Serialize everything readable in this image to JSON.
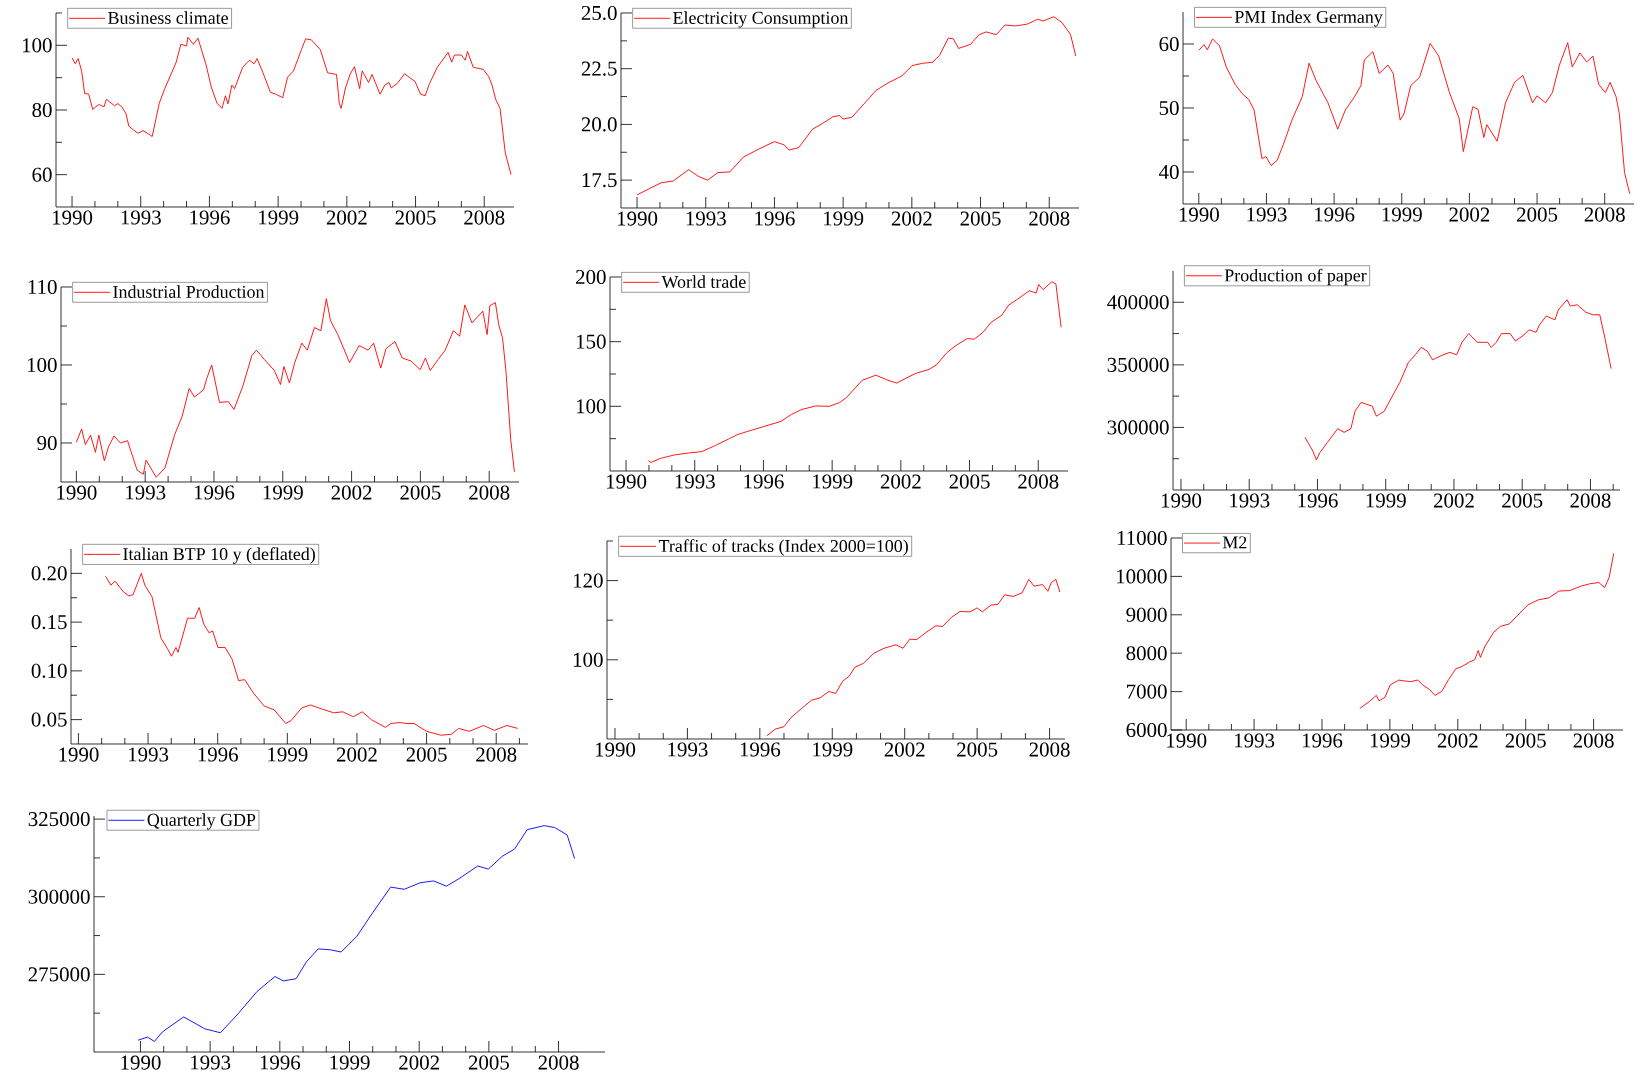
{
  "chart_data": [
    {
      "type": "line",
      "xlim": [
        1989.3,
        2009.3
      ],
      "ylim": [
        50,
        110
      ],
      "legend": "top left",
      "xticks": [
        1990,
        {
          "value": 1991,
          "label": null
        },
        {
          "value": 1992,
          "label": null
        },
        1993,
        {
          "value": 1994,
          "label": null
        },
        {
          "value": 1995,
          "label": null
        },
        1996,
        {
          "value": 1997,
          "label": null
        },
        {
          "value": 1998,
          "label": null
        },
        1999,
        {
          "value": 2000,
          "label": null
        },
        {
          "value": 2001,
          "label": null
        },
        2002,
        {
          "value": 2003,
          "label": null
        },
        {
          "value": 2004,
          "label": null
        },
        2005,
        {
          "value": 2006,
          "label": null
        },
        {
          "value": 2007,
          "label": null
        },
        2008
      ],
      "yticks": [
        60,
        {
          "value": 70,
          "label": null
        },
        80,
        {
          "value": 90,
          "label": null
        },
        100,
        {
          "value": 110,
          "label": null
        }
      ],
      "x": [
        1990.0,
        1990.14,
        1990.27,
        1990.42,
        1990.55,
        1990.73,
        1990.9,
        1991.16,
        1991.4,
        1991.5,
        1991.86,
        1992.0,
        1992.17,
        1992.36,
        1992.48,
        1992.67,
        1992.88,
        1993.1,
        1993.34,
        1993.5,
        1993.81,
        1994.05,
        1994.28,
        1994.55,
        1994.75,
        1995.0,
        1995.06,
        1995.3,
        1995.5,
        1995.84,
        1996.08,
        1996.33,
        1996.55,
        1996.7,
        1996.81,
        1996.98,
        1997.1,
        1997.45,
        1997.75,
        1997.95,
        1998.08,
        1998.34,
        1998.66,
        1998.89,
        1999.2,
        1999.41,
        1999.67,
        2000.02,
        2000.2,
        2000.45,
        2000.84,
        2001.16,
        2001.55,
        2001.67,
        2001.75,
        2001.94,
        2002.14,
        2002.33,
        2002.56,
        2002.67,
        2002.95,
        2003.1,
        2003.45,
        2003.66,
        2003.84,
        2003.94,
        2004.2,
        2004.52,
        2004.98,
        2005.22,
        2005.42,
        2005.61,
        2005.95,
        2006.42,
        2006.58,
        2006.7,
        2007.0,
        2007.17,
        2007.27,
        2007.52,
        2007.72,
        2007.95,
        2008.19,
        2008.34,
        2008.5,
        2008.69,
        2008.92,
        2009.17
      ],
      "series": [
        {
          "name": "Business climate",
          "color": "#ff0000",
          "values": [
            96.1,
            94.3,
            95.9,
            92,
            85.1,
            84.9,
            80.2,
            81.7,
            81,
            83.3,
            81.3,
            82,
            81,
            78.8,
            75,
            73.9,
            72.8,
            73.6,
            72.6,
            71.8,
            82.1,
            86.6,
            90.4,
            94.8,
            100.3,
            99.8,
            102.5,
            100.3,
            102.2,
            94.3,
            87.1,
            82.1,
            80.5,
            84.4,
            81.9,
            87.7,
            86.6,
            93.2,
            95.4,
            94.3,
            95.9,
            91.5,
            85.5,
            84.9,
            83.8,
            90.1,
            92.1,
            98.7,
            102,
            101.7,
            98.7,
            91.5,
            91,
            82.1,
            80.5,
            86.8,
            91,
            93.4,
            86.6,
            92.1,
            88.5,
            91,
            84.9,
            87.7,
            88.5,
            86.8,
            88.2,
            91.2,
            88.8,
            84.9,
            84.4,
            88.2,
            93.2,
            97.8,
            94.8,
            97,
            97,
            95.4,
            98.1,
            93.2,
            92.9,
            92.6,
            90.4,
            87.7,
            83.3,
            80.5,
            66.7,
            60
          ]
        }
      ]
    },
    {
      "type": "line",
      "xlim": [
        1989.3,
        2009.3
      ],
      "ylim": [
        16.25,
        25
      ],
      "legend": "top left",
      "xticks": [
        1990,
        {
          "value": 1991,
          "label": null
        },
        {
          "value": 1992,
          "label": null
        },
        1993,
        {
          "value": 1994,
          "label": null
        },
        {
          "value": 1995,
          "label": null
        },
        1996,
        {
          "value": 1997,
          "label": null
        },
        {
          "value": 1998,
          "label": null
        },
        1999,
        {
          "value": 2000,
          "label": null
        },
        {
          "value": 2001,
          "label": null
        },
        2002,
        {
          "value": 2003,
          "label": null
        },
        {
          "value": 2004,
          "label": null
        },
        2005,
        {
          "value": 2006,
          "label": null
        },
        {
          "value": 2007,
          "label": null
        },
        2008
      ],
      "yticks": [
        17.5,
        {
          "value": 18.75,
          "label": null
        },
        {
          "value": 20,
          "label": "20.0"
        },
        {
          "value": 21.25,
          "label": null
        },
        22.5,
        {
          "value": 23.75,
          "label": null
        },
        {
          "value": 25,
          "label": "25.0"
        }
      ],
      "x": [
        1990.0,
        1990.6,
        1991.05,
        1991.58,
        1992.25,
        1992.7,
        1993.08,
        1993.53,
        1994.05,
        1994.65,
        1995.33,
        1996.0,
        1996.43,
        1996.64,
        1997.06,
        1997.66,
        1998.11,
        1998.56,
        1998.86,
        1999.0,
        1999.38,
        2000.06,
        2000.43,
        2000.96,
        2001.56,
        2002.01,
        2002.46,
        2002.91,
        2003.21,
        2003.59,
        2003.81,
        2004.04,
        2004.56,
        2004.94,
        2005.24,
        2005.69,
        2006.07,
        2006.52,
        2007.04,
        2007.5,
        2007.73,
        2008.2,
        2008.56,
        2008.93,
        2009.16
      ],
      "series": [
        {
          "name": "Electricity Consumption",
          "color": "#ff0000",
          "values": [
            16.84,
            17.15,
            17.38,
            17.46,
            17.97,
            17.66,
            17.5,
            17.84,
            17.87,
            18.54,
            18.9,
            19.23,
            19.08,
            18.85,
            18.96,
            19.78,
            20.05,
            20.35,
            20.4,
            20.24,
            20.32,
            21.09,
            21.52,
            21.86,
            22.17,
            22.64,
            22.74,
            22.79,
            23.1,
            23.87,
            23.84,
            23.41,
            23.59,
            24.03,
            24.15,
            24.03,
            24.46,
            24.42,
            24.5,
            24.72,
            24.64,
            24.83,
            24.57,
            24.03,
            23.07
          ]
        }
      ]
    },
    {
      "type": "line",
      "xlim": [
        1989.3,
        2009.3
      ],
      "ylim": [
        35,
        65
      ],
      "legend": "top left",
      "xticks": [
        1990,
        {
          "value": 1991,
          "label": null
        },
        {
          "value": 1992,
          "label": null
        },
        1993,
        {
          "value": 1994,
          "label": null
        },
        {
          "value": 1995,
          "label": null
        },
        1996,
        {
          "value": 1997,
          "label": null
        },
        {
          "value": 1998,
          "label": null
        },
        1999,
        {
          "value": 2000,
          "label": null
        },
        {
          "value": 2001,
          "label": null
        },
        2002,
        {
          "value": 2003,
          "label": null
        },
        {
          "value": 2004,
          "label": null
        },
        2005,
        {
          "value": 2006,
          "label": null
        },
        {
          "value": 2007,
          "label": null
        },
        2008
      ],
      "yticks": [
        40,
        {
          "value": 45,
          "label": null
        },
        50,
        {
          "value": 55,
          "label": null
        },
        60
      ],
      "x": [
        1990.0,
        1990.23,
        1990.38,
        1990.61,
        1990.92,
        1991.22,
        1991.61,
        1991.91,
        1992.22,
        1992.45,
        1992.8,
        1992.98,
        1993.21,
        1993.47,
        1993.75,
        1994.13,
        1994.59,
        1994.89,
        1995.2,
        1995.73,
        1996.16,
        1996.5,
        1996.88,
        1997.19,
        1997.34,
        1997.72,
        1998.0,
        1998.39,
        1998.62,
        1998.93,
        1999.1,
        1999.4,
        1999.79,
        2000.26,
        2000.64,
        2001.1,
        2001.55,
        2001.73,
        2002.15,
        2002.38,
        2002.64,
        2002.77,
        2003.23,
        2003.6,
        2004.0,
        2004.37,
        2004.8,
        2005.0,
        2005.38,
        2005.68,
        2005.99,
        2006.36,
        2006.56,
        2006.9,
        2007.2,
        2007.48,
        2007.73,
        2008.03,
        2008.24,
        2008.5,
        2008.65,
        2008.88,
        2009.11
      ],
      "series": [
        {
          "name": "PMI Index Germany",
          "color": "#ff0000",
          "values": [
            59,
            59.9,
            59.1,
            60.8,
            59.7,
            56.4,
            53.7,
            52.3,
            51.3,
            49.7,
            42.1,
            42.4,
            41,
            41.8,
            44.3,
            48.1,
            51.8,
            57,
            54.3,
            50.8,
            46.7,
            49.7,
            51.6,
            53.5,
            57.5,
            58.8,
            55.4,
            56.7,
            55.4,
            48.1,
            49.1,
            53.5,
            54.8,
            60.1,
            58.1,
            52.6,
            48.3,
            43.2,
            50.2,
            49.8,
            45.4,
            47.4,
            44.8,
            50.8,
            54,
            55.1,
            50.8,
            51.9,
            50.8,
            52.4,
            56.7,
            60.2,
            56.4,
            58.6,
            57.2,
            58.1,
            53.7,
            52.4,
            54,
            51.8,
            49.1,
            39.9,
            36.6
          ]
        }
      ]
    },
    {
      "type": "line",
      "xlim": [
        1989.33,
        2009.3
      ],
      "ylim": [
        85,
        110
      ],
      "legend": "top left",
      "xticks": [
        1990,
        {
          "value": 1991,
          "label": null
        },
        {
          "value": 1992,
          "label": null
        },
        1993,
        {
          "value": 1994,
          "label": null
        },
        {
          "value": 1995,
          "label": null
        },
        1996,
        {
          "value": 1997,
          "label": null
        },
        {
          "value": 1998,
          "label": null
        },
        1999,
        {
          "value": 2000,
          "label": null
        },
        {
          "value": 2001,
          "label": null
        },
        2002,
        {
          "value": 2003,
          "label": null
        },
        {
          "value": 2004,
          "label": null
        },
        2005,
        {
          "value": 2006,
          "label": null
        },
        {
          "value": 2007,
          "label": null
        },
        2008
      ],
      "yticks": [
        90,
        {
          "value": 95,
          "label": null
        },
        100,
        {
          "value": 105,
          "label": null
        },
        110
      ],
      "x": [
        1990.0,
        1990.23,
        1990.39,
        1990.62,
        1990.83,
        1990.98,
        1991.22,
        1991.4,
        1991.64,
        1991.92,
        1992.23,
        1992.65,
        1992.92,
        1993.04,
        1993.48,
        1993.86,
        1994.29,
        1994.61,
        1994.92,
        1995.15,
        1995.54,
        1995.7,
        1995.9,
        1996.24,
        1996.63,
        1996.87,
        1997.26,
        1997.65,
        1997.85,
        1998.2,
        1998.63,
        1998.9,
        1999.05,
        1999.29,
        1999.52,
        1999.83,
        2000.07,
        2000.38,
        2000.66,
        2000.9,
        2001.08,
        2001.4,
        2001.63,
        2001.91,
        2002.33,
        2002.72,
        2002.96,
        2003.27,
        2003.5,
        2003.89,
        2004.21,
        2004.6,
        2004.99,
        2005.22,
        2005.43,
        2005.77,
        2006.08,
        2006.44,
        2006.71,
        2006.94,
        2007.25,
        2007.72,
        2007.91,
        2008.03,
        2008.27,
        2008.42,
        2008.58,
        2008.73,
        2008.94,
        2009.1
      ],
      "series": [
        {
          "name": "Industrial Production",
          "color": "#ff0000",
          "values": [
            90.1,
            91.8,
            89.8,
            91,
            88.8,
            91,
            87.7,
            89.5,
            90.9,
            90,
            90.3,
            86.5,
            86,
            87.8,
            85.6,
            86.8,
            91.1,
            93.4,
            97,
            95.9,
            96.8,
            98.4,
            100,
            95.2,
            95.3,
            94.3,
            97.3,
            101.2,
            101.9,
            100.7,
            99.3,
            97.5,
            99.8,
            97.7,
            100.3,
            102.8,
            101.9,
            104.8,
            104.4,
            108.5,
            105.7,
            103.9,
            102.3,
            100.3,
            102.5,
            101.9,
            102.8,
            99.6,
            102.1,
            103,
            100.9,
            100.5,
            99.4,
            100.9,
            99.3,
            100.7,
            101.9,
            104.4,
            103.7,
            107.7,
            105.4,
            106.9,
            103.9,
            107.6,
            108,
            105.1,
            103.5,
            99.3,
            90.4,
            86.3
          ]
        }
      ]
    },
    {
      "type": "line",
      "xlim": [
        1989.3,
        2009.3
      ],
      "ylim": [
        50,
        200
      ],
      "legend": "top left",
      "xticks": [
        1990,
        {
          "value": 1991,
          "label": null
        },
        {
          "value": 1992,
          "label": null
        },
        1993,
        {
          "value": 1994,
          "label": null
        },
        {
          "value": 1995,
          "label": null
        },
        1996,
        {
          "value": 1997,
          "label": null
        },
        {
          "value": 1998,
          "label": null
        },
        1999,
        {
          "value": 2000,
          "label": null
        },
        {
          "value": 2001,
          "label": null
        },
        2002,
        {
          "value": 2003,
          "label": null
        },
        {
          "value": 2004,
          "label": null
        },
        2005,
        {
          "value": 2006,
          "label": null
        },
        {
          "value": 2007,
          "label": null
        },
        2008
      ],
      "yticks": [
        {
          "value": 75,
          "label": null
        },
        100,
        {
          "value": 125,
          "label": null
        },
        150,
        {
          "value": 175,
          "label": null
        },
        200
      ],
      "x": [
        1990.98,
        1991.08,
        1991.51,
        1992.11,
        1992.78,
        1993.31,
        1993.91,
        1994.52,
        1994.89,
        1995.27,
        1996.02,
        1996.77,
        1997.22,
        1997.68,
        1998.28,
        1998.88,
        1999.33,
        1999.63,
        2000.31,
        2000.91,
        2001.44,
        2001.82,
        2002.19,
        2002.64,
        2003.24,
        2003.55,
        2004.0,
        2004.37,
        2004.9,
        2005.2,
        2005.58,
        2005.95,
        2006.41,
        2006.71,
        2007.16,
        2007.61,
        2007.91,
        2008.02,
        2008.21,
        2008.59,
        2008.77,
        2009.0
      ],
      "series": [
        {
          "name": "World trade",
          "color": "#ff0000",
          "values": [
            58,
            56.6,
            59.8,
            62.4,
            64,
            65,
            69.8,
            75.1,
            78.3,
            80.4,
            84.4,
            88.4,
            93.7,
            97.6,
            100.3,
            100,
            102.9,
            106.9,
            120.1,
            124.1,
            120.1,
            118,
            121.4,
            125.4,
            128.6,
            132,
            141.3,
            146.6,
            152.4,
            151.9,
            157.1,
            165.1,
            170.4,
            178.3,
            183.6,
            189.4,
            187.6,
            194.2,
            190.2,
            196.3,
            194.7,
            161.1
          ]
        }
      ]
    },
    {
      "type": "line",
      "xlim": [
        1989.65,
        2009.3
      ],
      "ylim": [
        250000,
        425000
      ],
      "legend": "top left",
      "xticks": [
        1990,
        {
          "value": 1991,
          "label": null
        },
        {
          "value": 1992,
          "label": null
        },
        1993,
        {
          "value": 1994,
          "label": null
        },
        {
          "value": 1995,
          "label": null
        },
        1996,
        {
          "value": 1997,
          "label": null
        },
        {
          "value": 1998,
          "label": null
        },
        1999,
        {
          "value": 2000,
          "label": null
        },
        {
          "value": 2001,
          "label": null
        },
        2002,
        {
          "value": 2003,
          "label": null
        },
        {
          "value": 2004,
          "label": null
        },
        2005,
        {
          "value": 2006,
          "label": null
        },
        {
          "value": 2007,
          "label": null
        },
        2008,
        {
          "value": 2009,
          "label": null
        }
      ],
      "yticks": [
        {
          "value": 275000,
          "label": null
        },
        300000,
        {
          "value": 325000,
          "label": null
        },
        350000,
        {
          "value": 375000,
          "label": null
        },
        400000
      ],
      "x": [
        1995.45,
        1995.61,
        1995.8,
        1995.95,
        1996.11,
        1996.44,
        1996.89,
        1997.17,
        1997.47,
        1997.65,
        1997.92,
        1998.41,
        1998.59,
        1998.94,
        1999.17,
        1999.62,
        2000.0,
        2000.3,
        2000.56,
        2000.83,
        2001.06,
        2001.52,
        2001.82,
        2002.12,
        2002.35,
        2002.65,
        2003.03,
        2003.48,
        2003.64,
        2003.86,
        2004.09,
        2004.47,
        2004.7,
        2005.08,
        2005.3,
        2005.61,
        2005.76,
        2006.06,
        2006.44,
        2006.59,
        2006.97,
        2007.12,
        2007.42,
        2007.8,
        2008.11,
        2008.41,
        2008.64,
        2008.91
      ],
      "series": [
        {
          "name": "Production of paper",
          "color": "#ff0000",
          "values": [
            292000,
            287000,
            281000,
            274000,
            280000,
            288000,
            299000,
            296000,
            299000,
            313000,
            320000,
            317000,
            309000,
            313000,
            321000,
            336000,
            352000,
            358000,
            364000,
            361000,
            354000,
            358000,
            360000,
            358000,
            368000,
            375000,
            368000,
            368000,
            364000,
            368000,
            375000,
            375000,
            369000,
            374000,
            378000,
            376000,
            382000,
            389000,
            386000,
            394000,
            402000,
            397000,
            398000,
            392000,
            390000,
            390000,
            371000,
            347000
          ]
        }
      ]
    },
    {
      "type": "line",
      "xlim": [
        1989.68,
        2009.37
      ],
      "ylim": [
        0.025,
        0.225
      ],
      "legend": "top left",
      "xticks": [
        1990,
        {
          "value": 1991,
          "label": null
        },
        {
          "value": 1992,
          "label": null
        },
        1993,
        {
          "value": 1994,
          "label": null
        },
        {
          "value": 1995,
          "label": null
        },
        1996,
        {
          "value": 1997,
          "label": null
        },
        {
          "value": 1998,
          "label": null
        },
        1999,
        {
          "value": 2000,
          "label": null
        },
        {
          "value": 2001,
          "label": null
        },
        2002,
        {
          "value": 2003,
          "label": null
        },
        {
          "value": 2004,
          "label": null
        },
        2005,
        {
          "value": 2006,
          "label": null
        },
        {
          "value": 2007,
          "label": null
        },
        2008,
        {
          "value": 2009,
          "label": null
        }
      ],
      "yticks": [
        0.05,
        {
          "value": 0.075,
          "label": null
        },
        {
          "value": 0.1,
          "label": "0.10"
        },
        {
          "value": 0.125,
          "label": null
        },
        0.15,
        {
          "value": 0.175,
          "label": null
        },
        {
          "value": 0.2,
          "label": "0.20"
        }
      ],
      "x": [
        1991.17,
        1991.4,
        1991.58,
        1991.94,
        1992.17,
        1992.35,
        1992.71,
        1992.86,
        1993.17,
        1993.55,
        1993.83,
        1994.01,
        1994.2,
        1994.29,
        1994.55,
        1994.7,
        1995.01,
        1995.2,
        1995.4,
        1995.63,
        1995.78,
        1996.01,
        1996.32,
        1996.62,
        1996.9,
        1997.16,
        1997.55,
        1998.0,
        1998.44,
        1998.93,
        1999.16,
        1999.62,
        2000.0,
        2000.47,
        2001.0,
        2001.39,
        2001.85,
        2002.23,
        2002.62,
        2003.23,
        2003.46,
        2003.85,
        2004.16,
        2004.46,
        2005.0,
        2005.61,
        2006.07,
        2006.38,
        2006.84,
        2007.46,
        2007.92,
        2008.46,
        2008.92
      ],
      "series": [
        {
          "name": "Italian BTP 10 y (deflated)",
          "color": "#ff0000",
          "values": [
            0.197,
            0.188,
            0.192,
            0.181,
            0.177,
            0.178,
            0.2,
            0.188,
            0.176,
            0.134,
            0.123,
            0.115,
            0.124,
            0.119,
            0.141,
            0.154,
            0.154,
            0.165,
            0.148,
            0.139,
            0.141,
            0.124,
            0.124,
            0.112,
            0.09,
            0.091,
            0.077,
            0.064,
            0.06,
            0.046,
            0.049,
            0.062,
            0.065,
            0.061,
            0.057,
            0.058,
            0.053,
            0.058,
            0.05,
            0.042,
            0.046,
            0.047,
            0.046,
            0.046,
            0.038,
            0.034,
            0.035,
            0.041,
            0.038,
            0.044,
            0.039,
            0.044,
            0.041
          ]
        }
      ]
    },
    {
      "type": "line",
      "xlim": [
        1989.67,
        2008.64
      ],
      "ylim": [
        80,
        130
      ],
      "legend": "top left",
      "xticks": [
        1990,
        {
          "value": 1991,
          "label": null
        },
        {
          "value": 1992,
          "label": null
        },
        1993,
        {
          "value": 1994,
          "label": null
        },
        {
          "value": 1995,
          "label": null
        },
        1996,
        {
          "value": 1997,
          "label": null
        },
        {
          "value": 1998,
          "label": null
        },
        1999,
        {
          "value": 2000,
          "label": null
        },
        {
          "value": 2001,
          "label": null
        },
        2002,
        {
          "value": 2003,
          "label": null
        },
        {
          "value": 2004,
          "label": null
        },
        2005,
        {
          "value": 2006,
          "label": null
        },
        {
          "value": 2007,
          "label": null
        },
        2008
      ],
      "yticks": [
        {
          "value": 90,
          "label": null
        },
        100,
        {
          "value": 110,
          "label": null
        },
        120,
        {
          "value": 130,
          "label": null
        }
      ],
      "x": [
        1996.29,
        1996.64,
        1997.0,
        1997.29,
        1997.71,
        1998.14,
        1998.5,
        1998.86,
        1999.14,
        1999.43,
        1999.71,
        1999.93,
        2000.29,
        2000.71,
        2001.14,
        2001.64,
        2001.93,
        2002.21,
        2002.5,
        2002.86,
        2003.29,
        2003.57,
        2003.93,
        2004.29,
        2004.71,
        2005.0,
        2005.21,
        2005.57,
        2005.86,
        2006.14,
        2006.5,
        2006.86,
        2007.14,
        2007.36,
        2007.71,
        2007.93,
        2008.07,
        2008.26,
        2008.43
      ],
      "series": [
        {
          "name": "Traffic of tracks (Index 2000=100)",
          "color": "#ff0000",
          "values": [
            80.8,
            82.5,
            83.1,
            85.4,
            87.6,
            89.8,
            90.4,
            92,
            91.5,
            94.6,
            95.9,
            98.1,
            99.1,
            101.6,
            102.9,
            103.8,
            102.9,
            105.2,
            105.1,
            106.8,
            108.6,
            108.4,
            110.7,
            112.2,
            112.1,
            113.1,
            112.1,
            113.8,
            114,
            116.4,
            116,
            116.9,
            120.3,
            118.6,
            119,
            117.3,
            119.5,
            120.3,
            117.1
          ]
        }
      ]
    },
    {
      "type": "line",
      "xlim": [
        1989.33,
        2009.3
      ],
      "ylim": [
        6000,
        11000
      ],
      "legend": "top left",
      "xticks": [
        1990,
        {
          "value": 1991,
          "label": null
        },
        {
          "value": 1992,
          "label": null
        },
        1993,
        {
          "value": 1994,
          "label": null
        },
        {
          "value": 1995,
          "label": null
        },
        1996,
        {
          "value": 1997,
          "label": null
        },
        {
          "value": 1998,
          "label": null
        },
        1999,
        {
          "value": 2000,
          "label": null
        },
        {
          "value": 2001,
          "label": null
        },
        2002,
        {
          "value": 2003,
          "label": null
        },
        {
          "value": 2004,
          "label": null
        },
        2005,
        {
          "value": 2006,
          "label": null
        },
        {
          "value": 2007,
          "label": null
        },
        2008
      ],
      "yticks": [
        6000,
        7000,
        8000,
        9000,
        10000,
        11000
      ],
      "x": [
        1997.67,
        1998.09,
        1998.4,
        1998.52,
        1998.78,
        1999.01,
        1999.39,
        1999.62,
        1999.92,
        2000.23,
        2000.46,
        2000.76,
        2000.99,
        2001.3,
        2001.6,
        2001.91,
        2002.21,
        2002.52,
        2002.75,
        2002.9,
        2003.0,
        2003.2,
        2003.58,
        2003.89,
        2004.27,
        2004.65,
        2005.1,
        2005.56,
        2006.02,
        2006.48,
        2006.94,
        2007.47,
        2007.85,
        2008.23,
        2008.49,
        2008.69,
        2008.89
      ],
      "series": [
        {
          "name": "M2",
          "color": "#ff0000",
          "values": [
            6560,
            6740,
            6900,
            6760,
            6850,
            7170,
            7300,
            7280,
            7260,
            7300,
            7170,
            7050,
            6900,
            7010,
            7320,
            7590,
            7660,
            7770,
            7830,
            8070,
            7890,
            8180,
            8540,
            8700,
            8760,
            8990,
            9260,
            9390,
            9440,
            9620,
            9630,
            9750,
            9810,
            9840,
            9710,
            9980,
            10600
          ]
        }
      ]
    },
    {
      "type": "line",
      "xlim": [
        1988,
        2010
      ],
      "ylim": [
        250000,
        326000
      ],
      "legend": "top left",
      "xticks": [
        1990,
        {
          "value": 1991,
          "label": null
        },
        {
          "value": 1992,
          "label": null
        },
        1993,
        {
          "value": 1994,
          "label": null
        },
        {
          "value": 1995,
          "label": null
        },
        1996,
        {
          "value": 1997,
          "label": null
        },
        {
          "value": 1998,
          "label": null
        },
        1999,
        {
          "value": 2000,
          "label": null
        },
        {
          "value": 2001,
          "label": null
        },
        2002,
        {
          "value": 2003,
          "label": null
        },
        {
          "value": 2004,
          "label": null
        },
        2005,
        {
          "value": 2006,
          "label": null
        },
        {
          "value": 2007,
          "label": null
        },
        2008
      ],
      "yticks": [
        {
          "value": 262500,
          "label": null
        },
        275000,
        {
          "value": 287500,
          "label": null
        },
        300000,
        {
          "value": 312500,
          "label": null
        },
        325000
      ],
      "x": [
        1989.9,
        1990.3,
        1990.6,
        1990.95,
        1991.86,
        1992.76,
        1993.44,
        1994.12,
        1995.02,
        1995.79,
        1996.15,
        1996.7,
        1997.15,
        1997.65,
        1998.19,
        1998.64,
        1999.32,
        2000.0,
        2000.77,
        2001.36,
        2002.04,
        2002.62,
        2003.17,
        2003.71,
        2004.52,
        2004.98,
        2005.57,
        2006.11,
        2006.65,
        2007.38,
        2007.83,
        2008.37,
        2008.69
      ],
      "series": [
        {
          "name": "Quarterly GDP",
          "color": "#0000ff",
          "values": [
            253800,
            254800,
            253400,
            256500,
            261300,
            257500,
            256200,
            261600,
            269500,
            274300,
            272900,
            273600,
            279100,
            283200,
            282900,
            282200,
            287300,
            294900,
            303100,
            302400,
            304500,
            305100,
            303400,
            305800,
            309900,
            308900,
            313000,
            315400,
            321600,
            322900,
            322300,
            319900,
            312300
          ]
        }
      ]
    }
  ]
}
